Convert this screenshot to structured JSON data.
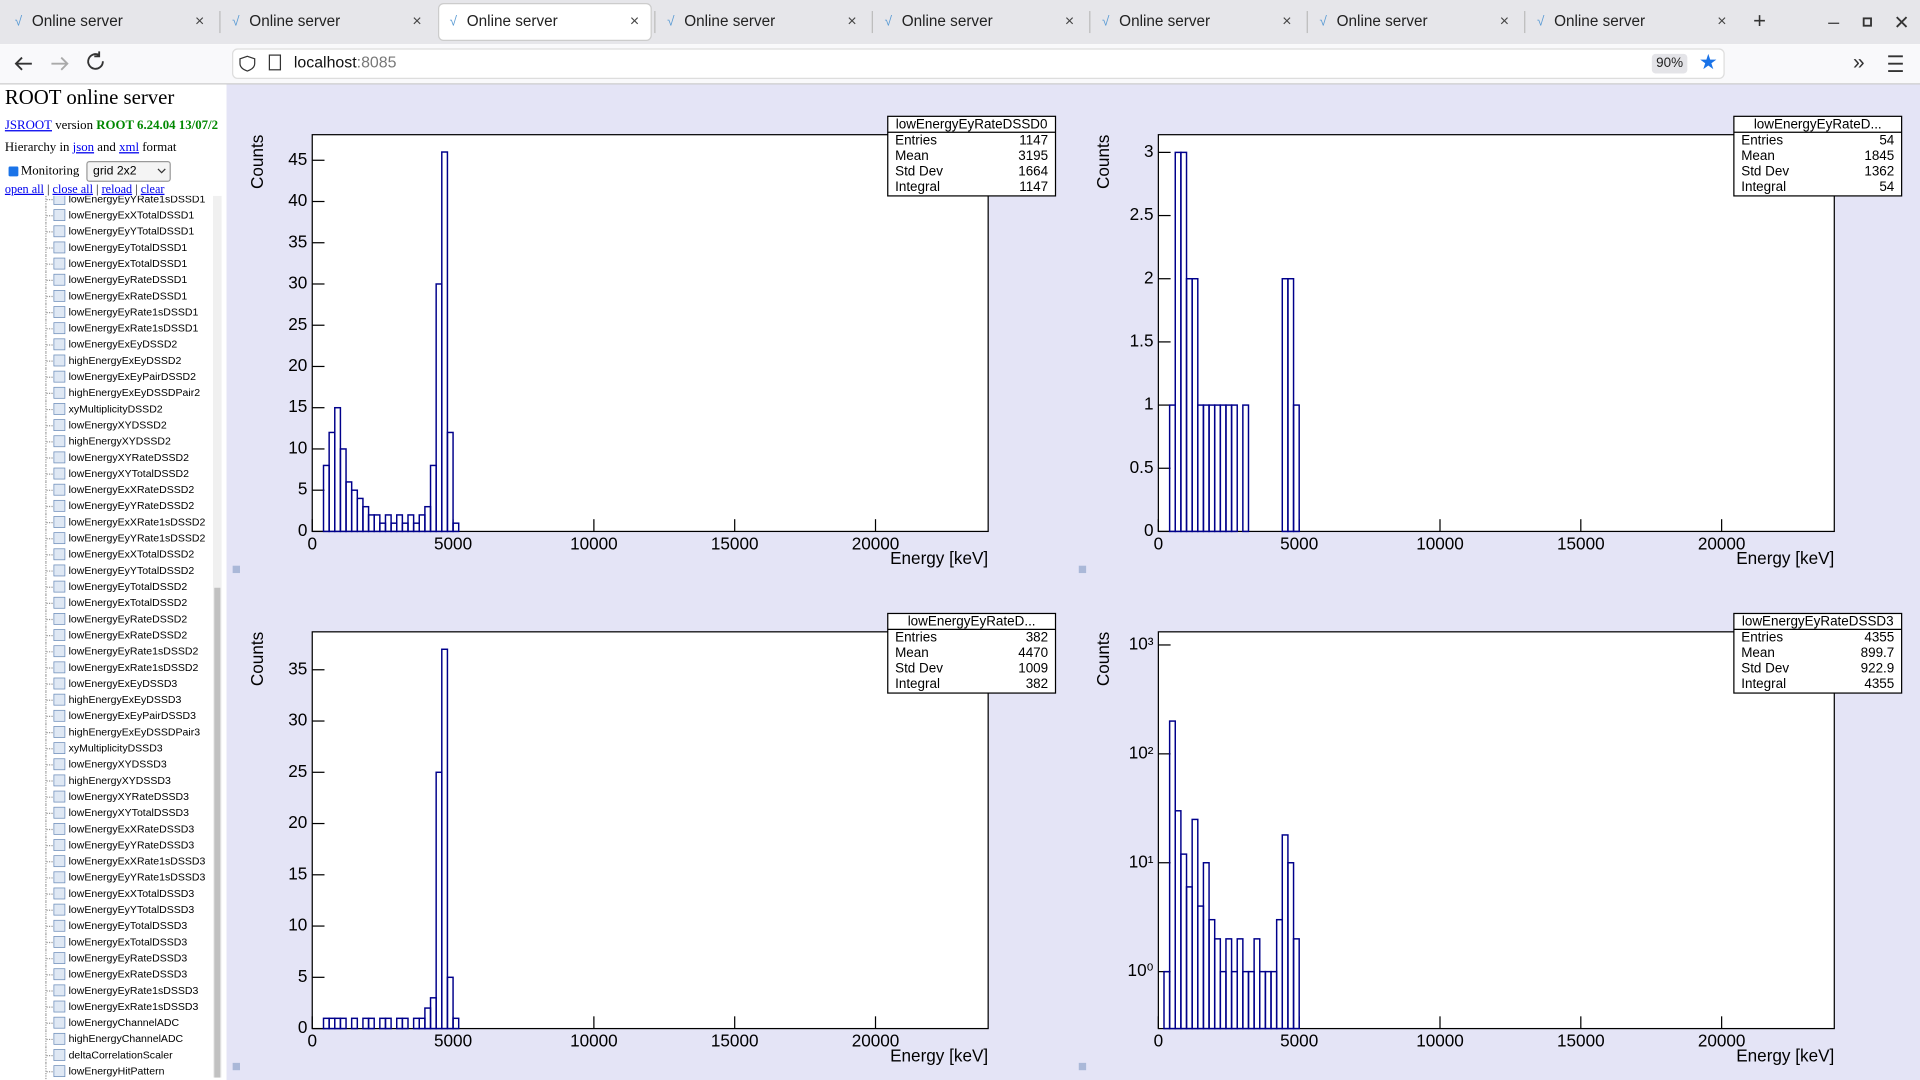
{
  "browser": {
    "tabs": [
      "Online server",
      "Online server",
      "Online server",
      "Online server",
      "Online server",
      "Online server",
      "Online server",
      "Online server"
    ],
    "url_host": "localhost",
    "url_port": ":8085",
    "zoom": "90%"
  },
  "sidebar": {
    "title": "ROOT online server",
    "jsroot_link": "JSROOT",
    "version_word": "version",
    "version": "ROOT 6.24.04 13/07/2",
    "hierarchy_prefix": "Hierarchy in",
    "json": "json",
    "and": "and",
    "xml": "xml",
    "format": "format",
    "monitoring": "Monitoring",
    "layout": "grid 2x2",
    "links": [
      "open all",
      "close all",
      "reload",
      "clear"
    ],
    "tree": [
      "lowEnergyEyYRate1sDSSD1",
      "lowEnergyExXTotalDSSD1",
      "lowEnergyEyYTotalDSSD1",
      "lowEnergyEyTotalDSSD1",
      "lowEnergyExTotalDSSD1",
      "lowEnergyEyRateDSSD1",
      "lowEnergyExRateDSSD1",
      "lowEnergyEyRate1sDSSD1",
      "lowEnergyExRate1sDSSD1",
      "lowEnergyExEyDSSD2",
      "highEnergyExEyDSSD2",
      "lowEnergyExEyPairDSSD2",
      "highEnergyExEyDSSDPair2",
      "xyMultiplicityDSSD2",
      "lowEnergyXYDSSD2",
      "highEnergyXYDSSD2",
      "lowEnergyXYRateDSSD2",
      "lowEnergyXYTotalDSSD2",
      "lowEnergyExXRateDSSD2",
      "lowEnergyEyYRateDSSD2",
      "lowEnergyExXRate1sDSSD2",
      "lowEnergyEyYRate1sDSSD2",
      "lowEnergyExXTotalDSSD2",
      "lowEnergyEyYTotalDSSD2",
      "lowEnergyEyTotalDSSD2",
      "lowEnergyExTotalDSSD2",
      "lowEnergyEyRateDSSD2",
      "lowEnergyExRateDSSD2",
      "lowEnergyEyRate1sDSSD2",
      "lowEnergyExRate1sDSSD2",
      "lowEnergyExEyDSSD3",
      "highEnergyExEyDSSD3",
      "lowEnergyExEyPairDSSD3",
      "highEnergyExEyDSSDPair3",
      "xyMultiplicityDSSD3",
      "lowEnergyXYDSSD3",
      "highEnergyXYDSSD3",
      "lowEnergyXYRateDSSD3",
      "lowEnergyXYTotalDSSD3",
      "lowEnergyExXRateDSSD3",
      "lowEnergyEyYRateDSSD3",
      "lowEnergyExXRate1sDSSD3",
      "lowEnergyEyYRate1sDSSD3",
      "lowEnergyExXTotalDSSD3",
      "lowEnergyEyYTotalDSSD3",
      "lowEnergyEyTotalDSSD3",
      "lowEnergyExTotalDSSD3",
      "lowEnergyEyRateDSSD3",
      "lowEnergyExRateDSSD3",
      "lowEnergyEyRate1sDSSD3",
      "lowEnergyExRate1sDSSD3",
      "lowEnergyChannelADC",
      "highEnergyChannelADC",
      "deltaCorrelationScaler",
      "lowEnergyHitPattern"
    ]
  },
  "charts": [
    {
      "type": "histogram",
      "y_label": "Counts",
      "x_label": "Energy [keV]",
      "color": "#00008b",
      "log_y": false,
      "bins": [
        0,
        200,
        400,
        600,
        800,
        1000,
        1200,
        1400,
        1600,
        1800,
        2000,
        2200,
        2400,
        2600,
        2800,
        3000,
        3200,
        3400,
        3600,
        3800,
        4000,
        4200,
        4400,
        4600,
        4800,
        5000,
        5200
      ],
      "values": [
        0,
        0,
        8,
        12,
        15,
        10,
        6,
        5,
        4,
        3,
        2,
        2,
        1,
        2,
        1,
        2,
        1,
        2,
        1,
        2,
        3,
        8,
        30,
        46,
        12,
        1
      ],
      "xlim": [
        0,
        24000
      ],
      "xticks": [
        0,
        5000,
        10000,
        15000,
        20000
      ],
      "ylim": [
        0,
        48.1
      ],
      "yticks": [
        0,
        5,
        10,
        15,
        20,
        25,
        30,
        35,
        40,
        45
      ],
      "stats": {
        "name": "lowEnergyEyRateDSSD0",
        "rows": [
          {
            "label": "Entries",
            "value": 1147
          },
          {
            "label": "Mean",
            "value": 3195
          },
          {
            "label": "Std Dev",
            "value": 1664
          },
          {
            "label": "Integral",
            "value": 1147
          }
        ]
      }
    },
    {
      "type": "histogram",
      "y_label": "Counts",
      "x_label": "Energy [keV]",
      "color": "#00008b",
      "log_y": false,
      "bins": [
        0,
        200,
        400,
        600,
        800,
        1000,
        1200,
        1400,
        1600,
        1800,
        2000,
        2200,
        2400,
        2600,
        2800,
        3000,
        3200,
        3400,
        3600,
        3800,
        4000,
        4200,
        4400,
        4600,
        4800,
        5000,
        5200
      ],
      "values": [
        0,
        0,
        1,
        3,
        3,
        2,
        2,
        1,
        1,
        1,
        1,
        1,
        1,
        1,
        0,
        1,
        0,
        0,
        0,
        0,
        0,
        0,
        2,
        2,
        1,
        0
      ],
      "xlim": [
        0,
        24000
      ],
      "xticks": [
        0,
        5000,
        10000,
        15000,
        20000
      ],
      "ylim": [
        0,
        3.14
      ],
      "yticks": [
        0,
        0.5,
        1,
        1.5,
        2,
        2.5,
        3
      ],
      "stats": {
        "name": "lowEnergyEyRateD...",
        "rows": [
          {
            "label": "Entries",
            "value": 54
          },
          {
            "label": "Mean",
            "value": 1845
          },
          {
            "label": "Std Dev",
            "value": 1362
          },
          {
            "label": "Integral",
            "value": 54
          }
        ]
      }
    },
    {
      "type": "histogram",
      "y_label": "Counts",
      "x_label": "Energy [keV]",
      "color": "#00008b",
      "log_y": false,
      "bins": [
        0,
        200,
        400,
        600,
        800,
        1000,
        1200,
        1400,
        1600,
        1800,
        2000,
        2200,
        2400,
        2600,
        2800,
        3000,
        3200,
        3400,
        3600,
        3800,
        4000,
        4200,
        4400,
        4600,
        4800,
        5000,
        5200
      ],
      "values": [
        0,
        0,
        1,
        1,
        1,
        1,
        0,
        1,
        0,
        1,
        1,
        0,
        1,
        1,
        0,
        1,
        1,
        0,
        1,
        1,
        2,
        3,
        25,
        37,
        5,
        1
      ],
      "xlim": [
        0,
        24000
      ],
      "xticks": [
        0,
        5000,
        10000,
        15000,
        20000
      ],
      "ylim": [
        0,
        38.7
      ],
      "yticks": [
        0,
        5,
        10,
        15,
        20,
        25,
        30,
        35
      ],
      "stats": {
        "name": "lowEnergyEyRateD...",
        "rows": [
          {
            "label": "Entries",
            "value": 382
          },
          {
            "label": "Mean",
            "value": 4470
          },
          {
            "label": "Std Dev",
            "value": 1009
          },
          {
            "label": "Integral",
            "value": 382
          }
        ]
      }
    },
    {
      "type": "histogram",
      "y_label": "Counts",
      "x_label": "Energy [keV]",
      "color": "#00008b",
      "log_y": true,
      "bins": [
        0,
        200,
        400,
        600,
        800,
        1000,
        1200,
        1400,
        1600,
        1800,
        2000,
        2200,
        2400,
        2600,
        2800,
        3000,
        3200,
        3400,
        3600,
        3800,
        4000,
        4200,
        4400,
        4600,
        4800,
        5000,
        5200
      ],
      "values": [
        0,
        1,
        200,
        30,
        12,
        6,
        25,
        4,
        10,
        3,
        2,
        1,
        2,
        1,
        2,
        1,
        1,
        2,
        1,
        1,
        1,
        3,
        18,
        10,
        2,
        0
      ],
      "xlim": [
        0,
        24000
      ],
      "xticks": [
        0,
        5000,
        10000,
        15000,
        20000
      ],
      "ylim": [
        0.3,
        1320
      ],
      "yticks": [
        {
          "value": 1,
          "label": "10⁰"
        },
        {
          "value": 10,
          "label": "10¹"
        },
        {
          "value": 100,
          "label": "10²"
        },
        {
          "value": 1000,
          "label": "10³"
        }
      ],
      "stats": {
        "name": "lowEnergyEyRateDSSD3",
        "rows": [
          {
            "label": "Entries",
            "value": 4355
          },
          {
            "label": "Mean",
            "value": 899.7
          },
          {
            "label": "Std Dev",
            "value": 922.9
          },
          {
            "label": "Integral",
            "value": 4355
          }
        ]
      }
    }
  ]
}
